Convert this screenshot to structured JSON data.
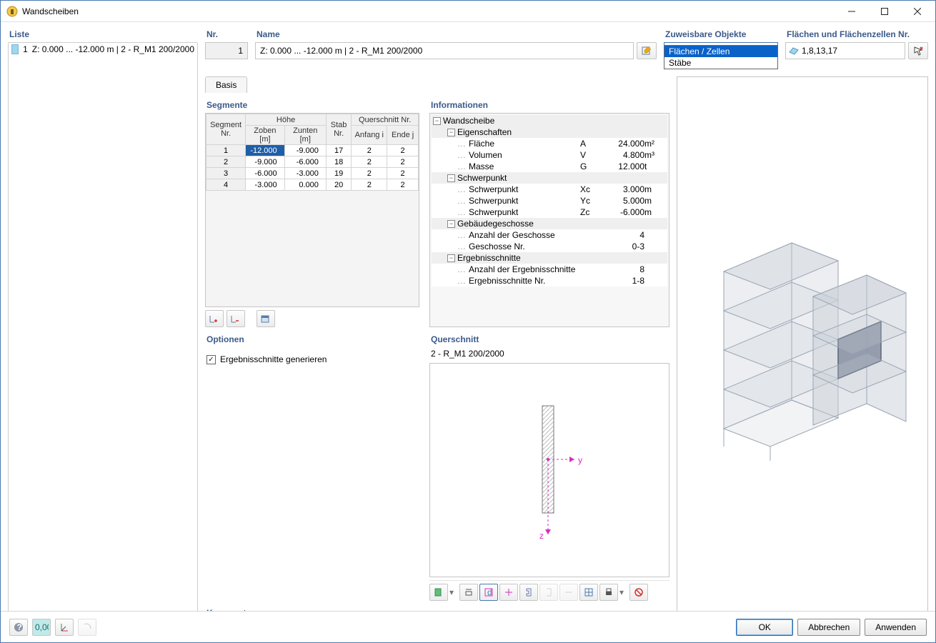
{
  "window": {
    "title": "Wandscheiben"
  },
  "left": {
    "heading": "Liste",
    "items": [
      {
        "num": "1",
        "text": "Z: 0.000 ... -12.000 m | 2 - R_M1 200/2000"
      }
    ]
  },
  "header": {
    "nr_label": "Nr.",
    "nr_value": "1",
    "name_label": "Name",
    "name_value": "Z: 0.000 ... -12.000  m | 2 - R_M1 200/2000",
    "assignable_label": "Zuweisbare Objekte",
    "dropdown_selected": "Flächen / Zellen",
    "dropdown_options": [
      "Flächen / Zellen",
      "Stäbe"
    ],
    "flz_label": "Flächen und Flächenzellen Nr.",
    "flz_value": "1,8,13,17"
  },
  "tabs": {
    "basis": "Basis"
  },
  "segments": {
    "heading": "Segmente",
    "cols": {
      "segnr": "Segment Nr.",
      "hohe": "Höhe",
      "zo": "Zoben [m]",
      "zu": "Zunten [m]",
      "stab": "Stab Nr.",
      "qs": "Querschnitt Nr.",
      "anfang": "Anfang i",
      "ende": "Ende j"
    },
    "rows": [
      {
        "n": "1",
        "zo": "-12.000",
        "zu": "-9.000",
        "stab": "17",
        "a": "2",
        "e": "2"
      },
      {
        "n": "2",
        "zo": "-9.000",
        "zu": "-6.000",
        "stab": "18",
        "a": "2",
        "e": "2"
      },
      {
        "n": "3",
        "zo": "-6.000",
        "zu": "-3.000",
        "stab": "19",
        "a": "2",
        "e": "2"
      },
      {
        "n": "4",
        "zo": "-3.000",
        "zu": "0.000",
        "stab": "20",
        "a": "2",
        "e": "2"
      }
    ]
  },
  "info": {
    "heading": "Informationen",
    "root": "Wandscheibe",
    "groups": [
      {
        "title": "Eigenschaften",
        "rows": [
          {
            "label": "Fläche",
            "sym": "A",
            "val": "24.000",
            "unit": "m²"
          },
          {
            "label": "Volumen",
            "sym": "V",
            "val": "4.800",
            "unit": "m³"
          },
          {
            "label": "Masse",
            "sym": "G",
            "val": "12.000",
            "unit": "t"
          }
        ]
      },
      {
        "title": "Schwerpunkt",
        "rows": [
          {
            "label": "Schwerpunkt",
            "sym": "Xc",
            "val": "3.000",
            "unit": "m"
          },
          {
            "label": "Schwerpunkt",
            "sym": "Yc",
            "val": "5.000",
            "unit": "m"
          },
          {
            "label": "Schwerpunkt",
            "sym": "Zc",
            "val": "-6.000",
            "unit": "m"
          }
        ]
      },
      {
        "title": "Gebäudegeschosse",
        "rows": [
          {
            "label": "Anzahl der Geschosse",
            "sym": "",
            "val": "4",
            "unit": ""
          },
          {
            "label": "Geschosse Nr.",
            "sym": "",
            "val": "0-3",
            "unit": ""
          }
        ]
      },
      {
        "title": "Ergebnisschnitte",
        "rows": [
          {
            "label": "Anzahl der Ergebnisschnitte",
            "sym": "",
            "val": "8",
            "unit": ""
          },
          {
            "label": "Ergebnisschnitte Nr.",
            "sym": "",
            "val": "1-8",
            "unit": ""
          }
        ]
      }
    ]
  },
  "options": {
    "heading": "Optionen",
    "generate": "Ergebnisschnitte generieren",
    "checked": true
  },
  "querschnitt": {
    "heading": "Querschnitt",
    "label": "2 - R_M1 200/2000",
    "y": "y",
    "z": "z"
  },
  "kommentar": {
    "heading": "Kommentar"
  },
  "buttons": {
    "ok": "OK",
    "cancel": "Abbrechen",
    "apply": "Anwenden"
  },
  "colors": {
    "accent": "#3b5a8a",
    "select_bg": "#1e5fa8",
    "magenta": "#d62fbc"
  }
}
